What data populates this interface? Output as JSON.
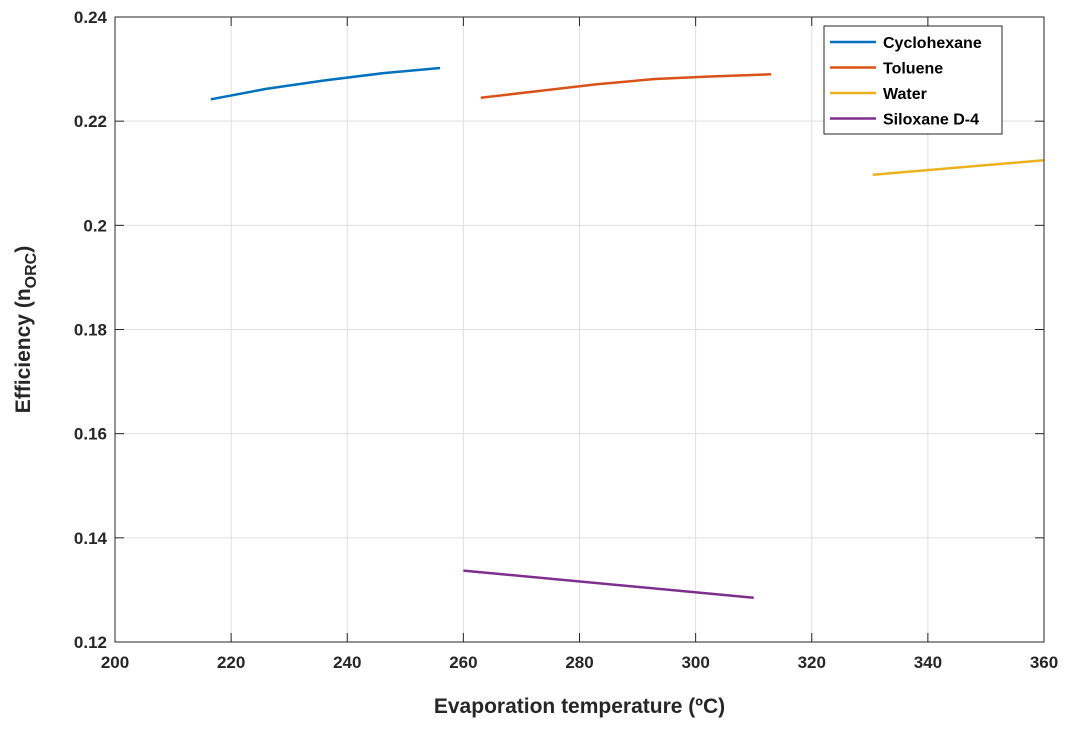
{
  "chart_data": {
    "type": "line",
    "title": "",
    "xlabel": "Evaporation temperature (ºC)",
    "ylabel_main": "Efficiency (n",
    "ylabel_sub": "ORC",
    "ylabel_close": ")",
    "xlim": [
      200,
      360
    ],
    "ylim": [
      0.12,
      0.24
    ],
    "xticks": [
      200,
      220,
      240,
      260,
      280,
      300,
      320,
      340,
      360
    ],
    "xtick_labels": [
      "200",
      "220",
      "240",
      "260",
      "280",
      "300",
      "320",
      "340",
      "360"
    ],
    "yticks": [
      0.12,
      0.14,
      0.16,
      0.18,
      0.2,
      0.22,
      0.24
    ],
    "ytick_labels": [
      "0.12",
      "0.14",
      "0.16",
      "0.18",
      "0.2",
      "0.22",
      "0.24"
    ],
    "grid": true,
    "legend_position": "top-right",
    "series": [
      {
        "name": "Cyclohexane",
        "color": "#0072BD",
        "x": [
          216.5,
          226,
          236,
          246,
          256
        ],
        "y": [
          0.2242,
          0.2262,
          0.2278,
          0.2292,
          0.2302
        ]
      },
      {
        "name": "Toluene",
        "color": "#D95319",
        "x": [
          263,
          273,
          283,
          293,
          303,
          313
        ],
        "y": [
          0.2245,
          0.2258,
          0.2271,
          0.2281,
          0.2286,
          0.229
        ]
      },
      {
        "name": "Water",
        "color": "#EDB120",
        "x": [
          330.5,
          360
        ],
        "y": [
          0.2097,
          0.2125
        ]
      },
      {
        "name": "Siloxane D-4",
        "color": "#7E2F8E",
        "x": [
          260,
          310
        ],
        "y": [
          0.1337,
          0.1285
        ]
      }
    ]
  }
}
